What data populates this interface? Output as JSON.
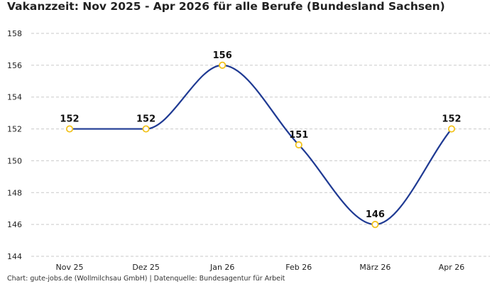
{
  "title": "Vakanzzeit: Nov 2025 - Apr 2026 für alle Berufe (Bundesland Sachsen)",
  "source": "Chart: gute-jobs.de (Wollmilchsau GmbH) | Datenquelle: Bundesagentur für Arbeit",
  "colors": {
    "line": "#1f3a93",
    "marker_edge": "#f2c21b",
    "marker_fill": "#ffffff",
    "grid": "#c9c9c9"
  },
  "chart_data": {
    "type": "line",
    "title": "Vakanzzeit: Nov 2025 - Apr 2026 für alle Berufe (Bundesland Sachsen)",
    "categories": [
      "Nov 25",
      "Dez 25",
      "Jan 26",
      "Feb 26",
      "März 26",
      "Apr 26"
    ],
    "values": [
      152,
      152,
      156,
      151,
      146,
      152
    ],
    "data_labels": [
      "152",
      "152",
      "156",
      "151",
      "146",
      "152"
    ],
    "xlabel": "",
    "ylabel": "",
    "ylim": [
      144,
      158
    ],
    "yticks": [
      "144",
      "146",
      "148",
      "150",
      "152",
      "154",
      "156",
      "158"
    ],
    "grid": true,
    "smooth": true
  }
}
